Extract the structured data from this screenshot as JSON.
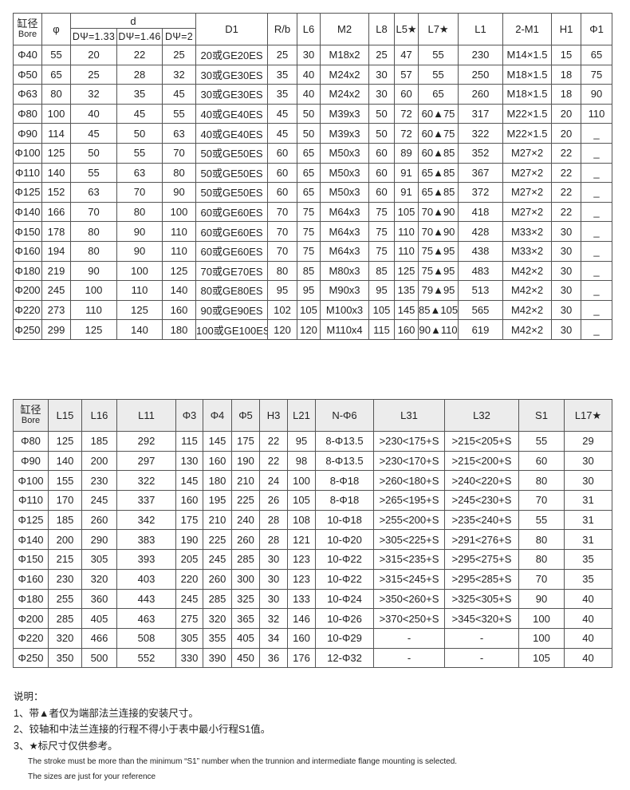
{
  "table1": {
    "headers": {
      "bore_cn": "缸径",
      "bore_en": "Bore",
      "phi": "φ",
      "d": "d",
      "d_sub": [
        "DΨ=1.33",
        "DΨ=1.46",
        "DΨ=2"
      ],
      "rest": [
        "D1",
        "R/b",
        "L6",
        "M2",
        "L8",
        "L5★",
        "L7★",
        "L1",
        "2-M1",
        "H1",
        "Φ1"
      ]
    },
    "rows": [
      [
        "Φ40",
        "55",
        "20",
        "22",
        "25",
        "20或GE20ES",
        "25",
        "30",
        "M18x2",
        "25",
        "47",
        "55",
        "230",
        "M14×1.5",
        "15",
        "65"
      ],
      [
        "Φ50",
        "65",
        "25",
        "28",
        "32",
        "30或GE30ES",
        "35",
        "40",
        "M24x2",
        "30",
        "57",
        "55",
        "250",
        "M18×1.5",
        "18",
        "75"
      ],
      [
        "Φ63",
        "80",
        "32",
        "35",
        "45",
        "30或GE30ES",
        "35",
        "40",
        "M24x2",
        "30",
        "60",
        "65",
        "260",
        "M18×1.5",
        "18",
        "90"
      ],
      [
        "Φ80",
        "100",
        "40",
        "45",
        "55",
        "40或GE40ES",
        "45",
        "50",
        "M39x3",
        "50",
        "72",
        "60▲75",
        "317",
        "M22×1.5",
        "20",
        "110"
      ],
      [
        "Φ90",
        "114",
        "45",
        "50",
        "63",
        "40或GE40ES",
        "45",
        "50",
        "M39x3",
        "50",
        "72",
        "60▲75",
        "322",
        "M22×1.5",
        "20",
        "_"
      ],
      [
        "Φ100",
        "125",
        "50",
        "55",
        "70",
        "50或GE50ES",
        "60",
        "65",
        "M50x3",
        "60",
        "89",
        "60▲85",
        "352",
        "M27×2",
        "22",
        "_"
      ],
      [
        "Φ110",
        "140",
        "55",
        "63",
        "80",
        "50或GE50ES",
        "60",
        "65",
        "M50x3",
        "60",
        "91",
        "65▲85",
        "367",
        "M27×2",
        "22",
        "_"
      ],
      [
        "Φ125",
        "152",
        "63",
        "70",
        "90",
        "50或GE50ES",
        "60",
        "65",
        "M50x3",
        "60",
        "91",
        "65▲85",
        "372",
        "M27×2",
        "22",
        "_"
      ],
      [
        "Φ140",
        "166",
        "70",
        "80",
        "100",
        "60或GE60ES",
        "70",
        "75",
        "M64x3",
        "75",
        "105",
        "70▲90",
        "418",
        "M27×2",
        "22",
        "_"
      ],
      [
        "Φ150",
        "178",
        "80",
        "90",
        "110",
        "60或GE60ES",
        "70",
        "75",
        "M64x3",
        "75",
        "110",
        "70▲90",
        "428",
        "M33×2",
        "30",
        "_"
      ],
      [
        "Φ160",
        "194",
        "80",
        "90",
        "110",
        "60或GE60ES",
        "70",
        "75",
        "M64x3",
        "75",
        "110",
        "75▲95",
        "438",
        "M33×2",
        "30",
        "_"
      ],
      [
        "Φ180",
        "219",
        "90",
        "100",
        "125",
        "70或GE70ES",
        "80",
        "85",
        "M80x3",
        "85",
        "125",
        "75▲95",
        "483",
        "M42×2",
        "30",
        "_"
      ],
      [
        "Φ200",
        "245",
        "100",
        "110",
        "140",
        "80或GE80ES",
        "95",
        "95",
        "M90x3",
        "95",
        "135",
        "79▲95",
        "513",
        "M42×2",
        "30",
        "_"
      ],
      [
        "Φ220",
        "273",
        "110",
        "125",
        "160",
        "90或GE90ES",
        "102",
        "105",
        "M100x3",
        "105",
        "145",
        "85▲105",
        "565",
        "M42×2",
        "30",
        "_"
      ],
      [
        "Φ250",
        "299",
        "125",
        "140",
        "180",
        "100或GE100ES",
        "120",
        "120",
        "M110x4",
        "115",
        "160",
        "90▲110",
        "619",
        "M42×2",
        "30",
        "_"
      ]
    ]
  },
  "table2": {
    "headers": {
      "bore_cn": "缸径",
      "bore_en": "Bore",
      "rest": [
        "L15",
        "L16",
        "L11",
        "Φ3",
        "Φ4",
        "Φ5",
        "H3",
        "L21",
        "N-Φ6",
        "L31",
        "L32",
        "S1",
        "L17★"
      ]
    },
    "rows": [
      [
        "Φ80",
        "125",
        "185",
        "292",
        "115",
        "145",
        "175",
        "22",
        "95",
        "8-Φ13.5",
        ">230<175+S",
        ">215<205+S",
        "55",
        "29"
      ],
      [
        "Φ90",
        "140",
        "200",
        "297",
        "130",
        "160",
        "190",
        "22",
        "98",
        "8-Φ13.5",
        ">230<170+S",
        ">215<200+S",
        "60",
        "30"
      ],
      [
        "Φ100",
        "155",
        "230",
        "322",
        "145",
        "180",
        "210",
        "24",
        "100",
        "8-Φ18",
        ">260<180+S",
        ">240<220+S",
        "80",
        "30"
      ],
      [
        "Φ110",
        "170",
        "245",
        "337",
        "160",
        "195",
        "225",
        "26",
        "105",
        "8-Φ18",
        ">265<195+S",
        ">245<230+S",
        "70",
        "31"
      ],
      [
        "Φ125",
        "185",
        "260",
        "342",
        "175",
        "210",
        "240",
        "28",
        "108",
        "10-Φ18",
        ">255<200+S",
        ">235<240+S",
        "55",
        "31"
      ],
      [
        "Φ140",
        "200",
        "290",
        "383",
        "190",
        "225",
        "260",
        "28",
        "121",
        "10-Φ20",
        ">305<225+S",
        ">291<276+S",
        "80",
        "31"
      ],
      [
        "Φ150",
        "215",
        "305",
        "393",
        "205",
        "245",
        "285",
        "30",
        "123",
        "10-Φ22",
        ">315<235+S",
        ">295<275+S",
        "80",
        "35"
      ],
      [
        "Φ160",
        "230",
        "320",
        "403",
        "220",
        "260",
        "300",
        "30",
        "123",
        "10-Φ22",
        ">315<245+S",
        ">295<285+S",
        "70",
        "35"
      ],
      [
        "Φ180",
        "255",
        "360",
        "443",
        "245",
        "285",
        "325",
        "30",
        "133",
        "10-Φ24",
        ">350<260+S",
        ">325<305+S",
        "90",
        "40"
      ],
      [
        "Φ200",
        "285",
        "405",
        "463",
        "275",
        "320",
        "365",
        "32",
        "146",
        "10-Φ26",
        ">370<250+S",
        ">345<320+S",
        "100",
        "40"
      ],
      [
        "Φ220",
        "320",
        "466",
        "508",
        "305",
        "355",
        "405",
        "34",
        "160",
        "10-Φ29",
        "-",
        "-",
        "100",
        "40"
      ],
      [
        "Φ250",
        "350",
        "500",
        "552",
        "330",
        "390",
        "450",
        "36",
        "176",
        "12-Φ32",
        "-",
        "-",
        "105",
        "40"
      ]
    ]
  },
  "notes": {
    "title": "说明：",
    "items": [
      "1、带▲者仅为端部法兰连接的安装尺寸。",
      "2、铰轴和中法兰连接的行程不得小于表中最小行程S1值。",
      "3、★标尺寸仅供参考。"
    ],
    "english": [
      "The stroke must be more than the minimum “S1” number when the  trunnion and intermediate flange mounting is selected.",
      "The sizes are just for your reference"
    ]
  }
}
